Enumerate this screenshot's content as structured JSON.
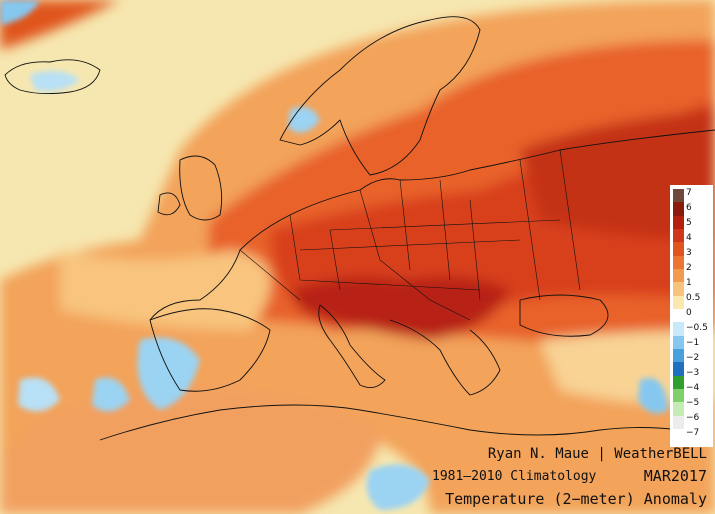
{
  "credit": "Ryan N. Maue | WeatherBELL",
  "climatology": "1981–2010 Climatology",
  "month": "MAR2017",
  "title": "Temperature (2−meter) Anomaly",
  "legend": {
    "ticks": [
      "7",
      "6",
      "5",
      "4",
      "3",
      "2",
      "1",
      "0.5",
      "0",
      "−0.5",
      "−1",
      "−2",
      "−3",
      "−4",
      "−5",
      "−6",
      "−7"
    ],
    "colors": [
      "#6e4a3c",
      "#8a1a0c",
      "#b3200e",
      "#d0361a",
      "#e0541f",
      "#ec7631",
      "#f29a4e",
      "#f7c37c",
      "#fae8ac",
      "#ffffff",
      "#c8e9fa",
      "#86c7ef",
      "#4a9fdd",
      "#2070c0",
      "#2fa02f",
      "#7fcf6a",
      "#c4ecb4",
      "#ececec"
    ]
  },
  "colors": {
    "sea_near_normal": "#f6e7b0",
    "warm_1": "#f3a35a",
    "warm_2": "#e8622a",
    "warm_3": "#d8401c",
    "warm_4": "#b82412",
    "cold": "#9bd3f2"
  }
}
